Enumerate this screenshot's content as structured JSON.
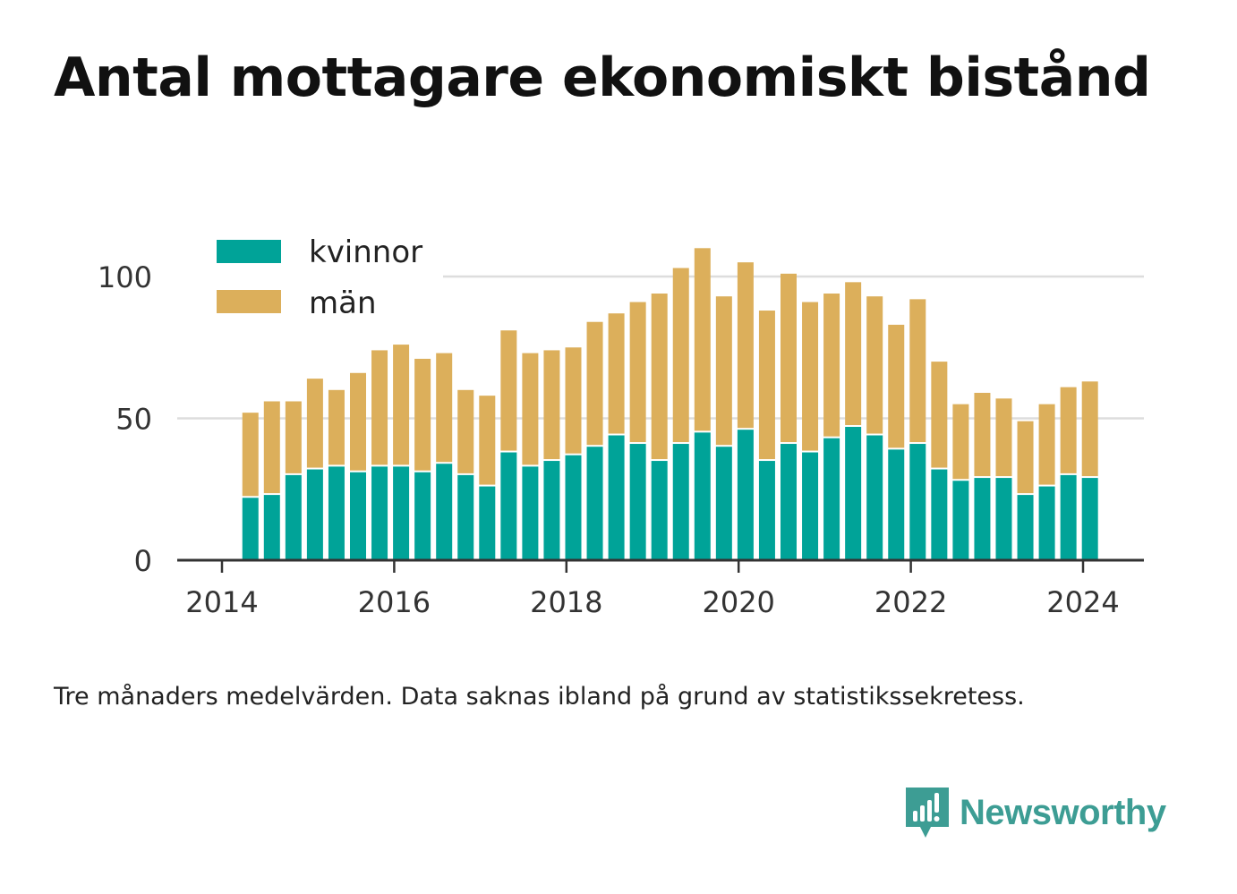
{
  "title": "Antal mottagare ekonomiskt bistånd",
  "footnote": "Tre månaders medelvärden. Data saknas ibland på grund av statistikssekretess.",
  "brand": "Newsworthy",
  "colors": {
    "kvinnor": "#00a398",
    "man": "#dcaf5b",
    "brand": "#3d9d94",
    "axis": "#333333",
    "grid": "#dddddd"
  },
  "chart_data": {
    "type": "bar",
    "stacked": true,
    "x_ticks": [
      "2014",
      "2016",
      "2018",
      "2020",
      "2022",
      "2024"
    ],
    "y_ticks": [
      "0",
      "50",
      "100"
    ],
    "ylim": [
      0,
      115
    ],
    "xlim": [
      2013.5,
      2024.7
    ],
    "grid": true,
    "legend_position": "top-left",
    "x": [
      2014.33,
      2014.58,
      2014.83,
      2015.08,
      2015.33,
      2015.58,
      2015.83,
      2016.08,
      2016.33,
      2016.58,
      2016.83,
      2017.08,
      2017.33,
      2017.58,
      2017.83,
      2018.08,
      2018.33,
      2018.58,
      2018.83,
      2019.08,
      2019.33,
      2019.58,
      2019.83,
      2020.08,
      2020.33,
      2020.58,
      2020.83,
      2021.08,
      2021.33,
      2021.58,
      2021.83,
      2022.08,
      2022.33,
      2022.58,
      2022.83,
      2023.08,
      2023.33,
      2023.58,
      2023.83,
      2024.08
    ],
    "series": [
      {
        "name": "kvinnor",
        "values": [
          22,
          23,
          30,
          32,
          33,
          31,
          33,
          33,
          31,
          34,
          30,
          26,
          38,
          33,
          35,
          37,
          40,
          44,
          41,
          35,
          41,
          45,
          40,
          46,
          35,
          41,
          38,
          43,
          47,
          44,
          39,
          41,
          32,
          28,
          29,
          29,
          23,
          26,
          30,
          29
        ]
      },
      {
        "name": "män",
        "values": [
          30,
          33,
          26,
          32,
          27,
          35,
          41,
          43,
          40,
          39,
          30,
          32,
          43,
          40,
          39,
          38,
          44,
          43,
          50,
          59,
          62,
          65,
          53,
          59,
          53,
          60,
          53,
          51,
          51,
          49,
          44,
          51,
          38,
          27,
          30,
          28,
          26,
          29,
          31,
          34
        ]
      }
    ]
  }
}
